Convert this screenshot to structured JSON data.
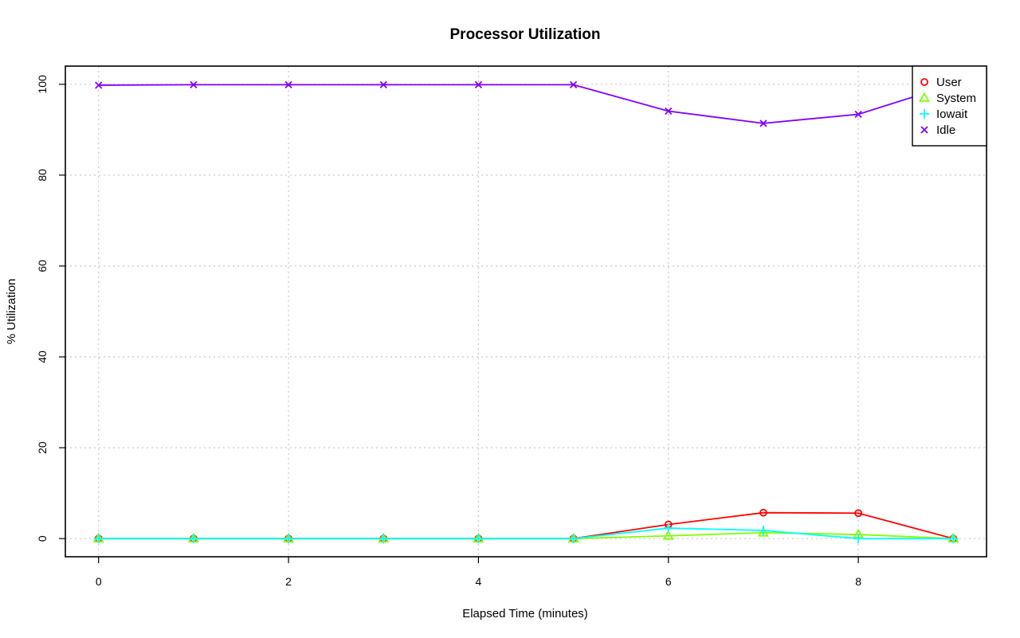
{
  "chart_data": {
    "type": "line",
    "title": "Processor Utilization",
    "xlabel": "Elapsed Time (minutes)",
    "ylabel": "% Utilization",
    "xlim": [
      -0.35,
      9.35
    ],
    "ylim": [
      -4,
      104
    ],
    "x_ticks": [
      0,
      2,
      4,
      6,
      8
    ],
    "y_ticks": [
      0,
      20,
      40,
      60,
      80,
      100
    ],
    "grid": true,
    "legend_position": "top-right",
    "x": [
      0,
      1,
      2,
      3,
      4,
      5,
      6,
      7,
      8,
      9
    ],
    "series": [
      {
        "name": "User",
        "color": "#ff0000",
        "marker": "circle",
        "values": [
          0,
          0,
          0,
          0,
          0,
          0,
          3.1,
          5.7,
          5.6,
          0
        ]
      },
      {
        "name": "System",
        "color": "#80ff00",
        "marker": "triangle",
        "values": [
          0,
          0,
          0,
          0,
          0,
          0,
          0.6,
          1.3,
          0.9,
          0
        ]
      },
      {
        "name": "Iowait",
        "color": "#00ffff",
        "marker": "plus",
        "values": [
          0,
          0,
          0,
          0,
          0,
          0,
          2.3,
          1.8,
          0,
          0
        ]
      },
      {
        "name": "Idle",
        "color": "#8000ff",
        "marker": "cross",
        "values": [
          99.8,
          99.9,
          99.9,
          99.9,
          99.9,
          99.9,
          94.1,
          91.4,
          93.4,
          100
        ]
      }
    ]
  }
}
